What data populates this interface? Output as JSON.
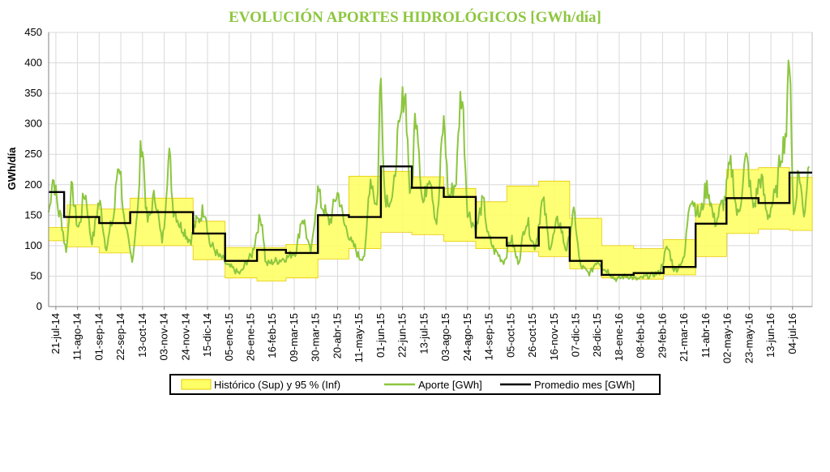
{
  "chart_data": {
    "type": "line",
    "title": "EVOLUCIÓN APORTES HIDROLÓGICOS [GWh/día]",
    "ylabel": "GWh/día",
    "ylim": [
      0,
      450
    ],
    "yticks": [
      0,
      50,
      100,
      150,
      200,
      250,
      300,
      350,
      400,
      450
    ],
    "xlim": [
      "2014-07-14",
      "2016-07-23"
    ],
    "xticks": [
      "2014-07-21",
      "2014-08-11",
      "2014-09-01",
      "2014-09-22",
      "2014-10-13",
      "2014-11-03",
      "2014-11-24",
      "2014-12-15",
      "2015-01-05",
      "2015-01-26",
      "2015-02-16",
      "2015-03-09",
      "2015-03-30",
      "2015-04-20",
      "2015-05-11",
      "2015-06-01",
      "2015-06-22",
      "2015-07-13",
      "2015-08-03",
      "2015-08-24",
      "2015-09-14",
      "2015-10-05",
      "2015-10-26",
      "2015-11-16",
      "2015-12-07",
      "2015-12-28",
      "2016-01-18",
      "2016-02-08",
      "2016-02-29",
      "2016-03-21",
      "2016-04-11",
      "2016-05-02",
      "2016-05-23",
      "2016-06-13",
      "2016-07-04"
    ],
    "xtick_labels": [
      "21-jul-14",
      "11-ago-14",
      "01-sep-14",
      "22-sep-14",
      "13-oct-14",
      "03-nov-14",
      "24-nov-14",
      "15-dic-14",
      "05-ene-15",
      "26-ene-15",
      "16-feb-15",
      "09-mar-15",
      "30-mar-15",
      "20-abr-15",
      "11-may-15",
      "01-jun-15",
      "22-jun-15",
      "13-jul-15",
      "03-ago-15",
      "24-ago-15",
      "14-sep-15",
      "05-oct-15",
      "26-oct-15",
      "16-nov-15",
      "07-dic-15",
      "28-dic-15",
      "18-ene-16",
      "08-feb-16",
      "29-feb-16",
      "21-mar-16",
      "11-abr-16",
      "02-may-16",
      "23-may-16",
      "13-jun-16",
      "04-jul-16"
    ],
    "grid": true,
    "legend_placement": "bottom",
    "series": [
      {
        "name": "Histórico (Sup)   y   95 % (Inf)",
        "kind": "band",
        "color": "#ffff66",
        "border_color": "#e6c800",
        "dates": [
          "2014-07-14",
          "2014-08-01",
          "2014-09-01",
          "2014-10-01",
          "2014-11-01",
          "2014-12-01",
          "2015-01-01",
          "2015-02-01",
          "2015-03-01",
          "2015-04-01",
          "2015-05-01",
          "2015-06-01",
          "2015-07-01",
          "2015-08-01",
          "2015-09-01",
          "2015-10-01",
          "2015-11-01",
          "2015-12-01",
          "2016-01-01",
          "2016-02-01",
          "2016-03-01",
          "2016-04-01",
          "2016-05-01",
          "2016-06-01",
          "2016-07-01",
          "2016-07-23"
        ],
        "upper": [
          130,
          167,
          160,
          178,
          178,
          140,
          97,
          97,
          102,
          150,
          214,
          222,
          213,
          194,
          172,
          198,
          206,
          145,
          100,
          95,
          110,
          168,
          225,
          228,
          212,
          212
        ],
        "lower": [
          108,
          98,
          88,
          100,
          100,
          77,
          47,
          42,
          47,
          78,
          95,
          122,
          118,
          107,
          95,
          90,
          82,
          62,
          47,
          45,
          52,
          82,
          120,
          127,
          125,
          125
        ]
      },
      {
        "name": "Aporte [GWh]",
        "kind": "line",
        "color": "#8dc63f",
        "knots": [
          [
            "2014-07-14",
            155
          ],
          [
            "2014-07-18",
            210
          ],
          [
            "2014-07-25",
            150
          ],
          [
            "2014-07-31",
            95
          ],
          [
            "2014-08-05",
            190
          ],
          [
            "2014-08-12",
            130
          ],
          [
            "2014-08-18",
            185
          ],
          [
            "2014-08-25",
            110
          ],
          [
            "2014-09-01",
            170
          ],
          [
            "2014-09-08",
            100
          ],
          [
            "2014-09-14",
            140
          ],
          [
            "2014-09-20",
            235
          ],
          [
            "2014-09-27",
            120
          ],
          [
            "2014-10-03",
            80
          ],
          [
            "2014-10-08",
            150
          ],
          [
            "2014-10-12",
            270
          ],
          [
            "2014-10-18",
            140
          ],
          [
            "2014-10-25",
            180
          ],
          [
            "2014-11-01",
            110
          ],
          [
            "2014-11-08",
            245
          ],
          [
            "2014-11-12",
            160
          ],
          [
            "2014-11-20",
            130
          ],
          [
            "2014-11-28",
            110
          ],
          [
            "2014-12-05",
            140
          ],
          [
            "2014-12-12",
            160
          ],
          [
            "2014-12-18",
            100
          ],
          [
            "2014-12-28",
            80
          ],
          [
            "2015-01-05",
            65
          ],
          [
            "2015-01-15",
            55
          ],
          [
            "2015-01-25",
            80
          ],
          [
            "2015-02-05",
            145
          ],
          [
            "2015-02-10",
            70
          ],
          [
            "2015-02-20",
            75
          ],
          [
            "2015-03-01",
            80
          ],
          [
            "2015-03-10",
            90
          ],
          [
            "2015-03-17",
            145
          ],
          [
            "2015-03-25",
            90
          ],
          [
            "2015-04-01",
            190
          ],
          [
            "2015-04-05",
            165
          ],
          [
            "2015-04-12",
            140
          ],
          [
            "2015-04-20",
            185
          ],
          [
            "2015-04-28",
            130
          ],
          [
            "2015-05-05",
            100
          ],
          [
            "2015-05-12",
            80
          ],
          [
            "2015-05-16",
            85
          ],
          [
            "2015-05-22",
            210
          ],
          [
            "2015-05-28",
            165
          ],
          [
            "2015-06-01",
            375
          ],
          [
            "2015-06-05",
            180
          ],
          [
            "2015-06-12",
            175
          ],
          [
            "2015-06-18",
            280
          ],
          [
            "2015-06-24",
            355
          ],
          [
            "2015-06-30",
            180
          ],
          [
            "2015-07-05",
            320
          ],
          [
            "2015-07-12",
            170
          ],
          [
            "2015-07-18",
            220
          ],
          [
            "2015-07-25",
            140
          ],
          [
            "2015-08-01",
            300
          ],
          [
            "2015-08-06",
            180
          ],
          [
            "2015-08-12",
            200
          ],
          [
            "2015-08-18",
            350
          ],
          [
            "2015-08-25",
            150
          ],
          [
            "2015-09-01",
            130
          ],
          [
            "2015-09-08",
            170
          ],
          [
            "2015-09-14",
            110
          ],
          [
            "2015-09-20",
            90
          ],
          [
            "2015-09-28",
            75
          ],
          [
            "2015-10-05",
            110
          ],
          [
            "2015-10-12",
            75
          ],
          [
            "2015-10-20",
            140
          ],
          [
            "2015-10-28",
            100
          ],
          [
            "2015-11-05",
            170
          ],
          [
            "2015-11-12",
            100
          ],
          [
            "2015-11-20",
            140
          ],
          [
            "2015-11-28",
            95
          ],
          [
            "2015-12-05",
            150
          ],
          [
            "2015-12-12",
            65
          ],
          [
            "2015-12-20",
            55
          ],
          [
            "2015-12-28",
            75
          ],
          [
            "2016-01-05",
            60
          ],
          [
            "2016-01-15",
            45
          ],
          [
            "2016-01-25",
            50
          ],
          [
            "2016-02-05",
            45
          ],
          [
            "2016-02-15",
            50
          ],
          [
            "2016-02-25",
            55
          ],
          [
            "2016-03-05",
            95
          ],
          [
            "2016-03-12",
            60
          ],
          [
            "2016-03-20",
            75
          ],
          [
            "2016-03-27",
            180
          ],
          [
            "2016-04-05",
            150
          ],
          [
            "2016-04-12",
            195
          ],
          [
            "2016-04-20",
            140
          ],
          [
            "2016-04-28",
            170
          ],
          [
            "2016-05-05",
            230
          ],
          [
            "2016-05-12",
            150
          ],
          [
            "2016-05-20",
            240
          ],
          [
            "2016-05-27",
            165
          ],
          [
            "2016-06-03",
            210
          ],
          [
            "2016-06-10",
            150
          ],
          [
            "2016-06-17",
            180
          ],
          [
            "2016-06-24",
            260
          ],
          [
            "2016-06-28",
            290
          ],
          [
            "2016-07-01",
            420
          ],
          [
            "2016-07-05",
            150
          ],
          [
            "2016-07-10",
            220
          ],
          [
            "2016-07-15",
            155
          ],
          [
            "2016-07-20",
            230
          ]
        ]
      },
      {
        "name": "Promedio mes [GWh]",
        "kind": "step",
        "color": "#000000",
        "dates": [
          "2014-07-14",
          "2014-07-29",
          "2014-09-01",
          "2014-10-01",
          "2014-12-01",
          "2015-01-01",
          "2015-02-01",
          "2015-03-01",
          "2015-04-01",
          "2015-05-01",
          "2015-06-01",
          "2015-07-01",
          "2015-08-01",
          "2015-09-01",
          "2015-10-01",
          "2015-11-01",
          "2015-12-01",
          "2016-01-01",
          "2016-02-01",
          "2016-03-01",
          "2016-04-01",
          "2016-05-01",
          "2016-06-01",
          "2016-07-01",
          "2016-07-23"
        ],
        "values": [
          188,
          147,
          137,
          155,
          120,
          75,
          93,
          88,
          150,
          147,
          230,
          195,
          180,
          113,
          100,
          130,
          75,
          52,
          55,
          65,
          136,
          178,
          170,
          220,
          220
        ]
      }
    ]
  }
}
